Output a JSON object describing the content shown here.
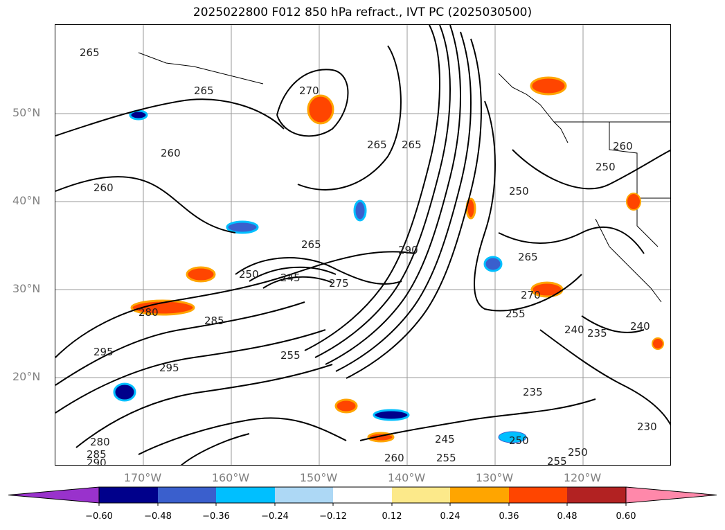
{
  "title": "2025022800 F012 850 hPa refract., IVT PC (2025030500)",
  "lat_labels": [
    "50°N",
    "40°N",
    "30°N",
    "20°N"
  ],
  "lon_labels": [
    "170°W",
    "160°W",
    "150°W",
    "140°W",
    "130°W",
    "120°W"
  ],
  "colorbar": {
    "ticks": [
      "−0.60",
      "−0.48",
      "−0.36",
      "−0.24",
      "−0.12",
      "0.12",
      "0.24",
      "0.36",
      "0.48",
      "0.60"
    ],
    "colors": [
      "#9932cc",
      "#00008b",
      "#3a5fcd",
      "#00bfff",
      "#add8f5",
      "#ffffff",
      "#fce98a",
      "#ffa500",
      "#ff4500",
      "#b22222",
      "#ff88aa"
    ]
  },
  "contour_labels": [
    "265",
    "265",
    "270",
    "260",
    "265",
    "265",
    "260",
    "265",
    "250",
    "245",
    "275",
    "290",
    "280",
    "285",
    "255",
    "295",
    "250",
    "260",
    "250",
    "265",
    "270",
    "255",
    "240",
    "235",
    "240",
    "235",
    "230",
    "245",
    "250",
    "255",
    "250",
    "260",
    "255",
    "280",
    "285",
    "290",
    "295"
  ]
}
